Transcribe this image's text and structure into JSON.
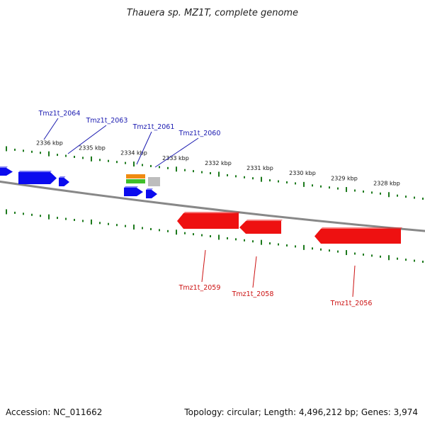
{
  "title": "Thauera sp. MZ1T, complete genome",
  "footer": {
    "accession": "Accession: NC_011662",
    "summary": "Topology: circular; Length: 4,496,212 bp; Genes: 3,974"
  },
  "colors": {
    "forward_gene": "#0b0bee",
    "reverse_gene": "#ee1111",
    "forward_label": "#1a1ab0",
    "reverse_label": "#cc1111",
    "tick": "#1d7a1d",
    "backbone": "#888888",
    "feature_orange": "#f08a10",
    "feature_green": "#3fbf2a",
    "feature_gray": "#bdbdbd"
  },
  "chart_data": {
    "type": "genome-map",
    "scale_unit": "kbp",
    "tick_labels": [
      "2336 kbp",
      "2335 kbp",
      "2334 kbp",
      "2333 kbp",
      "2332 kbp",
      "2331 kbp",
      "2330 kbp",
      "2329 kbp",
      "2328 kbp"
    ],
    "forward_gene_labels": [
      "Tmz1t_2064",
      "Tmz1t_2063",
      "Tmz1t_2061",
      "Tmz1t_2060"
    ],
    "reverse_gene_labels": [
      "Tmz1t_2059",
      "Tmz1t_2058",
      "Tmz1t_2056"
    ]
  }
}
